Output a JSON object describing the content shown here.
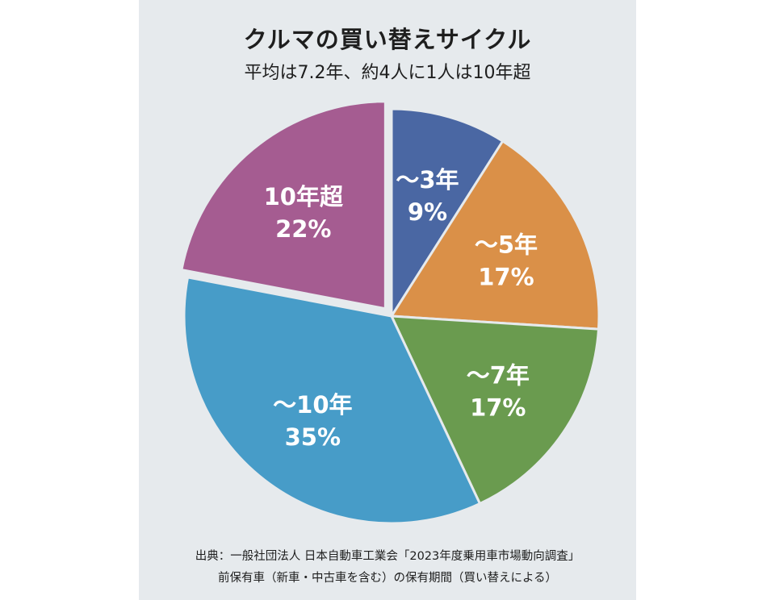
{
  "title": "クルマの買い替えサイクル",
  "subtitle": "平均は7.2年、約4人に1人は10年超",
  "source": {
    "line1": "出典：一般社団法人 日本自動車工業会「2023年度乗用車市場動向調査」",
    "line2": "前保有車（新車・中古車を含む）の保有期間（買い替えによる）"
  },
  "chart_data": {
    "type": "pie",
    "title": "クルマの買い替えサイクル",
    "subtitle": "平均は7.2年、約4人に1人は10年超",
    "slices": [
      {
        "label": "〜3年",
        "value": 9,
        "value_label": "9%",
        "color": "#4a67a3",
        "exploded": false
      },
      {
        "label": "〜5年",
        "value": 17,
        "value_label": "17%",
        "color": "#da9048",
        "exploded": false
      },
      {
        "label": "〜7年",
        "value": 17,
        "value_label": "17%",
        "color": "#6a9b4f",
        "exploded": false
      },
      {
        "label": "〜10年",
        "value": 35,
        "value_label": "35%",
        "color": "#479cc8",
        "exploded": false
      },
      {
        "label": "10年超",
        "value": 22,
        "value_label": "22%",
        "color": "#a55c91",
        "exploded": true
      }
    ],
    "start_angle": "12 o'clock",
    "direction": "clockwise"
  }
}
